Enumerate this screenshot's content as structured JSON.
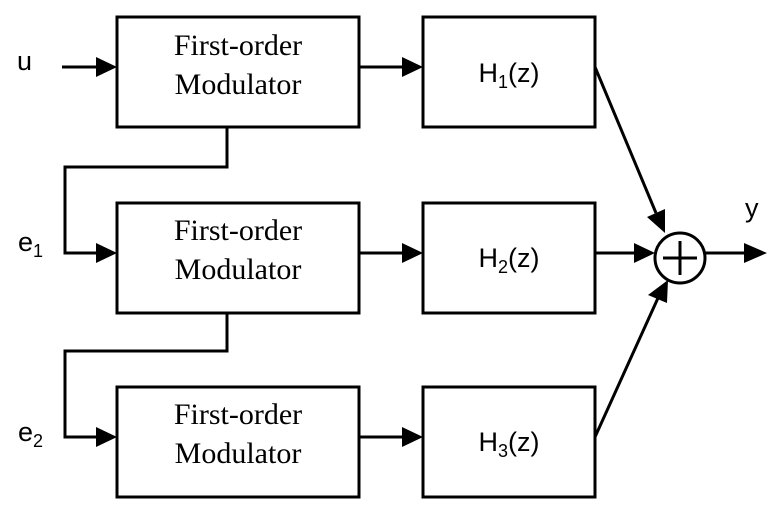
{
  "signals": {
    "input": "u",
    "error1": {
      "base": "e",
      "sub": "1"
    },
    "error2": {
      "base": "e",
      "sub": "2"
    },
    "output": "y"
  },
  "modulators": [
    {
      "line1": "First-order",
      "line2": "Modulator"
    },
    {
      "line1": "First-order",
      "line2": "Modulator"
    },
    {
      "line1": "First-order",
      "line2": "Modulator"
    }
  ],
  "filters": [
    {
      "base": "H",
      "sub": "1",
      "arg": "(z)"
    },
    {
      "base": "H",
      "sub": "2",
      "arg": "(z)"
    },
    {
      "base": "H",
      "sub": "3",
      "arg": "(z)"
    }
  ],
  "summer": {
    "symbol": "+"
  }
}
